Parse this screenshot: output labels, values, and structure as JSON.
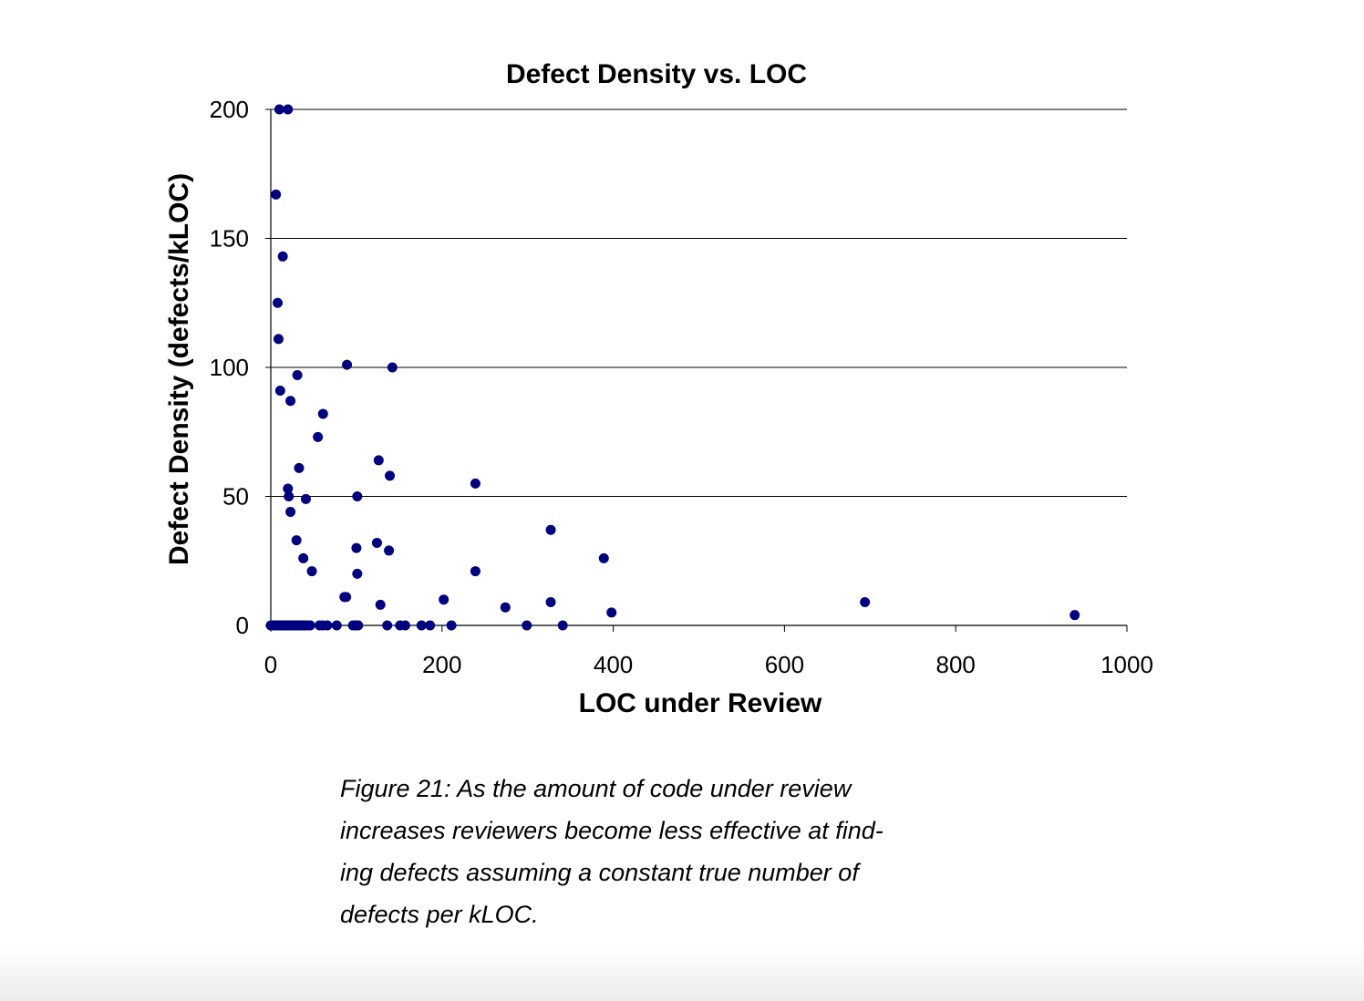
{
  "chart_data": {
    "type": "scatter",
    "title": "Defect Density vs. LOC",
    "xlabel": "LOC under Review",
    "ylabel": "Defect Density (defects/kLOC)",
    "xlim": [
      0,
      1000
    ],
    "ylim": [
      0,
      200
    ],
    "xticks": [
      0,
      200,
      400,
      600,
      800,
      1000
    ],
    "yticks": [
      0,
      50,
      100,
      150,
      200
    ],
    "grid": "horizontal",
    "marker_color": "#000080",
    "points": [
      {
        "x": 10,
        "y": 200
      },
      {
        "x": 20,
        "y": 200
      },
      {
        "x": 6,
        "y": 167
      },
      {
        "x": 14,
        "y": 143
      },
      {
        "x": 8,
        "y": 125
      },
      {
        "x": 9,
        "y": 111
      },
      {
        "x": 11,
        "y": 91
      },
      {
        "x": 23,
        "y": 87
      },
      {
        "x": 31,
        "y": 97
      },
      {
        "x": 89,
        "y": 101
      },
      {
        "x": 142,
        "y": 100
      },
      {
        "x": 61,
        "y": 82
      },
      {
        "x": 55,
        "y": 73
      },
      {
        "x": 33,
        "y": 61
      },
      {
        "x": 126,
        "y": 64
      },
      {
        "x": 139,
        "y": 58
      },
      {
        "x": 239,
        "y": 55
      },
      {
        "x": 20,
        "y": 53
      },
      {
        "x": 21,
        "y": 50
      },
      {
        "x": 41,
        "y": 49
      },
      {
        "x": 101,
        "y": 50
      },
      {
        "x": 23,
        "y": 44
      },
      {
        "x": 327,
        "y": 37
      },
      {
        "x": 30,
        "y": 33
      },
      {
        "x": 124,
        "y": 32
      },
      {
        "x": 100,
        "y": 30
      },
      {
        "x": 138,
        "y": 29
      },
      {
        "x": 38,
        "y": 26
      },
      {
        "x": 389,
        "y": 26
      },
      {
        "x": 48,
        "y": 21
      },
      {
        "x": 101,
        "y": 20
      },
      {
        "x": 239,
        "y": 21
      },
      {
        "x": 86,
        "y": 11
      },
      {
        "x": 88,
        "y": 11
      },
      {
        "x": 202,
        "y": 10
      },
      {
        "x": 327,
        "y": 9
      },
      {
        "x": 694,
        "y": 9
      },
      {
        "x": 128,
        "y": 8
      },
      {
        "x": 274,
        "y": 7
      },
      {
        "x": 398,
        "y": 5
      },
      {
        "x": 939,
        "y": 4
      },
      {
        "x": 0,
        "y": 0
      },
      {
        "x": 2,
        "y": 0
      },
      {
        "x": 4,
        "y": 0
      },
      {
        "x": 6,
        "y": 0
      },
      {
        "x": 8,
        "y": 0
      },
      {
        "x": 10,
        "y": 0
      },
      {
        "x": 12,
        "y": 0
      },
      {
        "x": 14,
        "y": 0
      },
      {
        "x": 16,
        "y": 0
      },
      {
        "x": 18,
        "y": 0
      },
      {
        "x": 20,
        "y": 0
      },
      {
        "x": 22,
        "y": 0
      },
      {
        "x": 24,
        "y": 0
      },
      {
        "x": 26,
        "y": 0
      },
      {
        "x": 28,
        "y": 0
      },
      {
        "x": 30,
        "y": 0
      },
      {
        "x": 32,
        "y": 0
      },
      {
        "x": 34,
        "y": 0
      },
      {
        "x": 36,
        "y": 0
      },
      {
        "x": 38,
        "y": 0
      },
      {
        "x": 40,
        "y": 0
      },
      {
        "x": 43,
        "y": 0
      },
      {
        "x": 46,
        "y": 0
      },
      {
        "x": 57,
        "y": 0
      },
      {
        "x": 61,
        "y": 0
      },
      {
        "x": 66,
        "y": 0
      },
      {
        "x": 77,
        "y": 0
      },
      {
        "x": 96,
        "y": 0
      },
      {
        "x": 99,
        "y": 0
      },
      {
        "x": 102,
        "y": 0
      },
      {
        "x": 136,
        "y": 0
      },
      {
        "x": 151,
        "y": 0
      },
      {
        "x": 157,
        "y": 0
      },
      {
        "x": 176,
        "y": 0
      },
      {
        "x": 186,
        "y": 0
      },
      {
        "x": 211,
        "y": 0
      },
      {
        "x": 299,
        "y": 0
      },
      {
        "x": 341,
        "y": 0
      }
    ]
  },
  "caption": {
    "lines": [
      "Figure 21: As the amount of code under review",
      "increases reviewers become less effective at find-",
      "ing defects assuming a constant true number of",
      "defects per kLOC."
    ]
  }
}
